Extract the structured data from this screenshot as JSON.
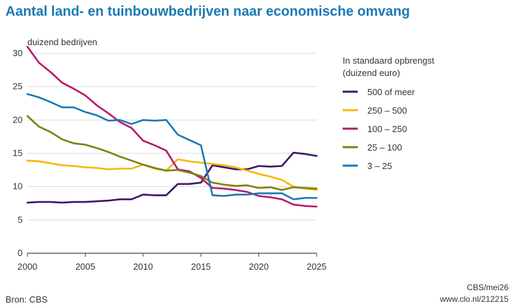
{
  "chart_data": {
    "type": "line",
    "title": "Aantal land- en tuinbouwbedrijven naar economische omvang",
    "ylabel": "duizend bedrijven",
    "xlabel": "",
    "xlim": [
      2000,
      2025
    ],
    "ylim": [
      0,
      30
    ],
    "xticks": [
      "2000",
      "2005",
      "2010",
      "2015",
      "2020",
      "2025"
    ],
    "yticks": [
      "0",
      "5",
      "10",
      "15",
      "20",
      "25",
      "30"
    ],
    "grid": "horizontal",
    "legend_title": [
      "In standaard opbrengst",
      "(duizend euro)"
    ],
    "legend_position": "right",
    "x": [
      2000,
      2001,
      2002,
      2003,
      2004,
      2005,
      2006,
      2007,
      2008,
      2009,
      2010,
      2011,
      2012,
      2013,
      2014,
      2015,
      2016,
      2017,
      2018,
      2019,
      2020,
      2021,
      2022,
      2023,
      2024,
      2025
    ],
    "series": [
      {
        "name": "500 of meer",
        "color": "#3d1766",
        "values": [
          7.6,
          7.7,
          7.7,
          7.6,
          7.7,
          7.7,
          7.8,
          7.9,
          8.1,
          8.1,
          8.8,
          8.7,
          8.7,
          10.4,
          10.4,
          10.6,
          13.2,
          12.9,
          12.6,
          12.6,
          13.1,
          13.0,
          13.1,
          15.1,
          14.9,
          14.6
        ]
      },
      {
        "name": "250 – 500",
        "color": "#f5b800",
        "values": [
          13.9,
          13.8,
          13.5,
          13.2,
          13.1,
          12.9,
          12.8,
          12.6,
          12.7,
          12.7,
          13.3,
          12.7,
          12.4,
          14.1,
          13.8,
          13.6,
          13.4,
          13.2,
          12.9,
          12.4,
          11.9,
          11.5,
          11.0,
          10.0,
          9.7,
          9.5
        ]
      },
      {
        "name": "100 – 250",
        "color": "#b5176e",
        "values": [
          31.0,
          28.6,
          27.2,
          25.6,
          24.7,
          23.7,
          22.2,
          21.0,
          19.7,
          18.8,
          16.9,
          16.2,
          15.4,
          12.6,
          12.3,
          11.3,
          9.8,
          9.7,
          9.5,
          9.2,
          8.6,
          8.4,
          8.1,
          7.3,
          7.1,
          7.0
        ]
      },
      {
        "name": "25 – 100",
        "color": "#7f7f0e",
        "values": [
          20.6,
          19.0,
          18.2,
          17.1,
          16.5,
          16.3,
          15.8,
          15.2,
          14.5,
          13.9,
          13.3,
          12.8,
          12.4,
          12.5,
          12.1,
          11.6,
          10.6,
          10.3,
          10.1,
          10.2,
          9.8,
          9.9,
          9.5,
          9.9,
          9.8,
          9.7
        ]
      },
      {
        "name": "3 – 25",
        "color": "#1a7ab5",
        "values": [
          23.9,
          23.4,
          22.7,
          21.9,
          21.9,
          21.2,
          20.7,
          19.9,
          20.0,
          19.4,
          20.0,
          19.9,
          20.0,
          17.8,
          17.0,
          16.2,
          8.7,
          8.6,
          8.8,
          8.8,
          9.0,
          9.0,
          9.0,
          8.1,
          8.3,
          8.3
        ]
      }
    ]
  },
  "footer": {
    "source": "Bron: CBS",
    "credit_line1": "CBS/mei26",
    "credit_line2": "www.clo.nl/212215"
  }
}
